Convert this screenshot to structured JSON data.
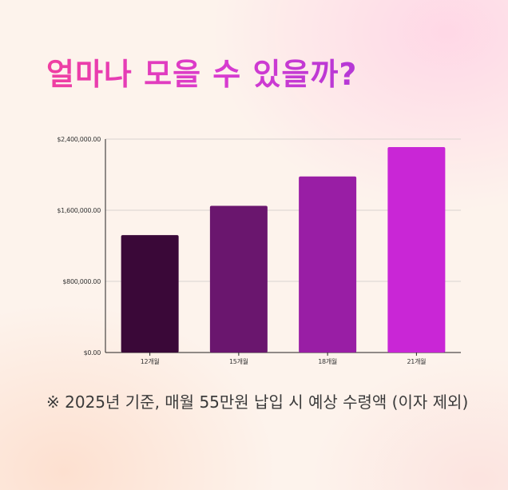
{
  "title": "얼마나 모을 수 있을까?",
  "note": "※ 2025년 기준, 매월 55만원 납입 시 예상 수령액 (이자 제외)",
  "chart_data": {
    "type": "bar",
    "categories": [
      "12개월",
      "15개월",
      "18개월",
      "21개월"
    ],
    "values": [
      1320000,
      1650000,
      1980000,
      2310000
    ],
    "ylim": [
      0,
      2400000
    ],
    "yticks": [
      0,
      800000,
      1600000,
      2400000
    ],
    "ytick_labels": [
      "$0.00",
      "$800,000.00",
      "$1,600,000.00",
      "$2,400,000.00"
    ],
    "colors": [
      "#3a0838",
      "#6a166e",
      "#991ea5",
      "#c926d6"
    ],
    "grid": true,
    "title": "",
    "xlabel": "",
    "ylabel": ""
  }
}
